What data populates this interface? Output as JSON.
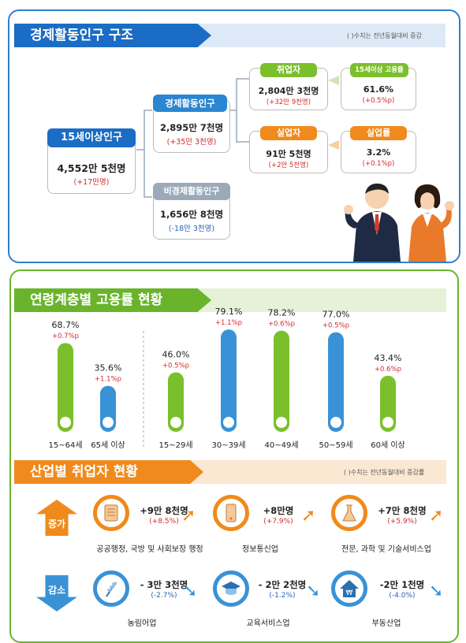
{
  "section1": {
    "title": "경제활동인구 구조",
    "note": "( )수치는 전년동월대비 증감",
    "pop15": {
      "label": "15세이상인구",
      "value": "4,552만 5천명",
      "change": "(+17만명)"
    },
    "active": {
      "label": "경제활동인구",
      "value": "2,895만 7천명",
      "change": "(+35만 3천명)"
    },
    "inactive": {
      "label": "비경제활동인구",
      "value": "1,656만 8천명",
      "change": "(-18만 3천명)"
    },
    "employed": {
      "label": "취업자",
      "value": "2,804만 3천명",
      "change": "(+32만 9천명)"
    },
    "unemployed": {
      "label": "실업자",
      "value": "91만 5천명",
      "change": "(+2만 5천명)"
    },
    "emp_rate": {
      "label": "15세이상 고용률",
      "value": "61.6%",
      "change": "(+0.5%p)"
    },
    "unemp_rate": {
      "label": "실업률",
      "value": "3.2%",
      "change": "(+0.1%p)"
    }
  },
  "section2": {
    "title": "연령계층별 고용률 현황"
  },
  "chart_data": {
    "type": "bar",
    "title": "연령계층별 고용률 현황",
    "categories": [
      "15~64세",
      "65세 이상",
      "15~29세",
      "30~39세",
      "40~49세",
      "50~59세",
      "60세 이상"
    ],
    "values": [
      68.7,
      35.6,
      46.0,
      79.1,
      78.2,
      77.0,
      43.4
    ],
    "value_labels": [
      "68.7%",
      "35.6%",
      "46.0%",
      "79.1%",
      "78.2%",
      "77.0%",
      "43.4%"
    ],
    "changes": [
      "+0.7%p",
      "+1.1%p",
      "+0.5%p",
      "+1.1%p",
      "+0.6%p",
      "+0.5%p",
      "+0.6%p"
    ],
    "colors": [
      "#7cbf2c",
      "#3a92d6",
      "#7cbf2c",
      "#3a92d6",
      "#7cbf2c",
      "#3a92d6",
      "#7cbf2c"
    ],
    "ylim": [
      0,
      100
    ]
  },
  "section3": {
    "title": "산업별 취업자 현황",
    "note": "( )수치는 전년동월대비 증감률",
    "increase_label": "증가",
    "decrease_label": "감소",
    "increase": [
      {
        "name": "공공행정, 국방 및 사회보장 행정",
        "value": "+9만 8천명",
        "change": "(+8.5%)",
        "icon": "scroll-icon"
      },
      {
        "name": "정보통신업",
        "value": "+8만명",
        "change": "(+7.9%)",
        "icon": "phone-icon"
      },
      {
        "name": "전문, 과학 및 기술서비스업",
        "value": "+7만 8천명",
        "change": "(+5.9%)",
        "icon": "flask-icon"
      }
    ],
    "decrease": [
      {
        "name": "농림어업",
        "value": "- 3만 3천명",
        "change": "(-2.7%)",
        "icon": "wheat-icon"
      },
      {
        "name": "교육서비스업",
        "value": "- 2만 2천명",
        "change": "(-1.2%)",
        "icon": "graduation-cap-icon"
      },
      {
        "name": "부동산업",
        "value": "-2만 1천명",
        "change": "(-4.0%)",
        "icon": "house-won-icon"
      }
    ]
  },
  "colors": {
    "blue": "#1a6cc4",
    "green": "#6ab42c",
    "orange": "#f08a1c",
    "pale_blue": "#dde9f6",
    "pale_green": "#e6f2d8",
    "pale_orange": "#fbe8d2"
  }
}
